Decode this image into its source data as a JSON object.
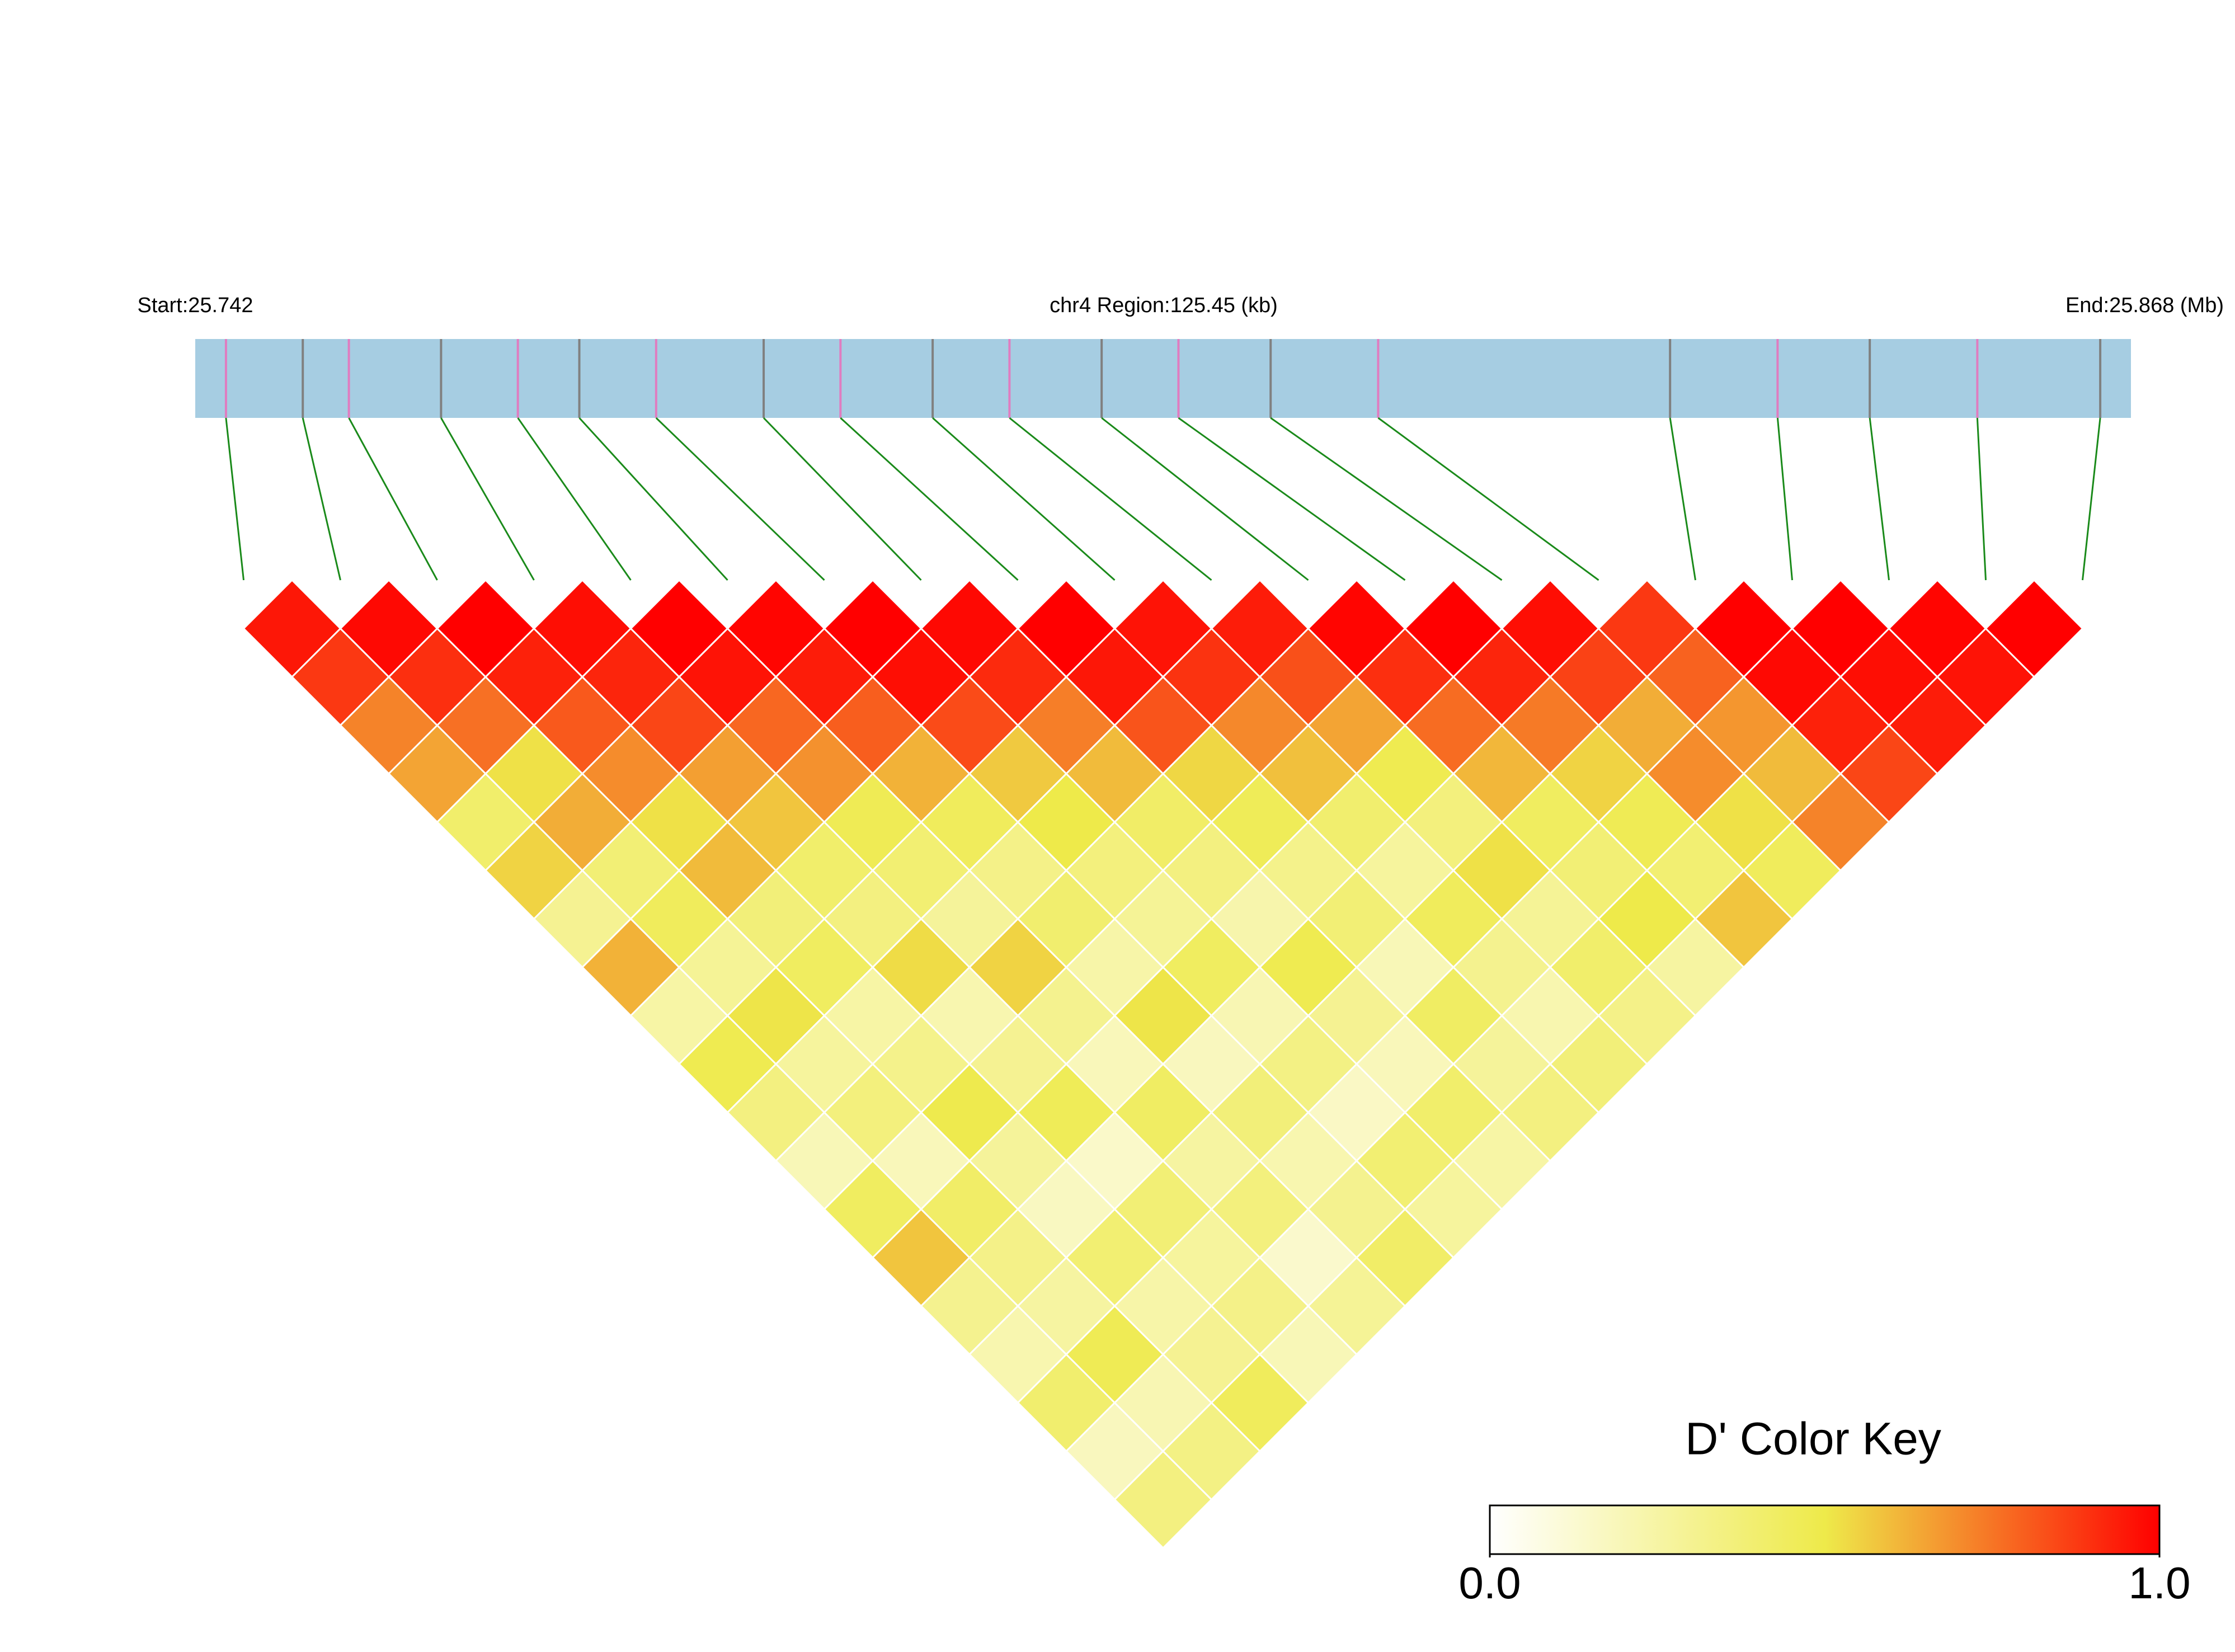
{
  "chart_data": {
    "type": "ld-heatmap",
    "start_label": "Start:25.742",
    "region_label": "chr4 Region:125.45 (kb)",
    "end_label": "End:25.868 (Mb)",
    "xlim": [
      25.742,
      25.868
    ],
    "snp_positions": [
      25.744,
      25.749,
      25.752,
      25.758,
      25.763,
      25.767,
      25.772,
      25.779,
      25.784,
      25.79,
      25.795,
      25.801,
      25.806,
      25.812,
      25.819,
      25.838,
      25.845,
      25.851,
      25.858,
      25.866
    ],
    "snp_colors": [
      "#e07cc0",
      "#808080"
    ],
    "bar_color": "#a6cde2",
    "link_color": "#1a8a1a",
    "dprime": [
      [
        0.95,
        0.88,
        0.72,
        0.65,
        0.41,
        0.55,
        0.3,
        0.62,
        0.25,
        0.48,
        0.35,
        0.2,
        0.44,
        0.58,
        0.31,
        0.22,
        0.4,
        0.18,
        0.35
      ],
      [
        0.98,
        0.9,
        0.76,
        0.52,
        0.63,
        0.38,
        0.45,
        0.29,
        0.51,
        0.27,
        0.36,
        0.19,
        0.42,
        0.33,
        0.26,
        0.47,
        0.21,
        0.34
      ],
      [
        1.0,
        0.93,
        0.81,
        0.7,
        0.52,
        0.6,
        0.37,
        0.44,
        0.25,
        0.32,
        0.49,
        0.28,
        0.17,
        0.39,
        0.24,
        0.3,
        0.45
      ],
      [
        0.97,
        0.92,
        0.85,
        0.66,
        0.58,
        0.41,
        0.35,
        0.53,
        0.22,
        0.3,
        0.46,
        0.15,
        0.38,
        0.27,
        0.33,
        0.2
      ],
      [
        1.0,
        0.96,
        0.78,
        0.69,
        0.47,
        0.39,
        0.28,
        0.55,
        0.31,
        0.19,
        0.43,
        0.26,
        0.36,
        0.14,
        0.29
      ],
      [
        0.99,
        0.94,
        0.8,
        0.62,
        0.45,
        0.33,
        0.4,
        0.24,
        0.51,
        0.18,
        0.37,
        0.22,
        0.31,
        0.42
      ],
      [
        1.0,
        0.97,
        0.84,
        0.57,
        0.5,
        0.36,
        0.29,
        0.44,
        0.21,
        0.34,
        0.16,
        0.39,
        0.27
      ],
      [
        0.98,
        0.91,
        0.73,
        0.6,
        0.42,
        0.35,
        0.23,
        0.48,
        0.3,
        0.19,
        0.41,
        0.25
      ],
      [
        1.0,
        0.95,
        0.82,
        0.54,
        0.46,
        0.32,
        0.38,
        0.2,
        0.43,
        0.28,
        0.35
      ],
      [
        0.96,
        0.89,
        0.71,
        0.59,
        0.4,
        0.27,
        0.45,
        0.31,
        0.22,
        0.37
      ],
      [
        0.94,
        0.83,
        0.65,
        0.48,
        0.36,
        0.52,
        0.29,
        0.41,
        0.33
      ],
      [
        0.99,
        0.9,
        0.77,
        0.61,
        0.44,
        0.38,
        0.5,
        0.26
      ],
      [
        1.0,
        0.92,
        0.74,
        0.55,
        0.47,
        0.39,
        0.58
      ],
      [
        0.97,
        0.86,
        0.63,
        0.7,
        0.52,
        0.45
      ],
      [
        0.88,
        0.79,
        0.68,
        0.6,
        0.72
      ],
      [
        1.0,
        0.98,
        0.93,
        0.85
      ],
      [
        1.0,
        0.97,
        0.94
      ],
      [
        0.99,
        0.96
      ],
      [
        1.0
      ]
    ],
    "color_key": {
      "title": "D' Color Key",
      "lim": [
        0,
        1
      ],
      "ticks": [
        {
          "value": 0,
          "label": "0.0"
        },
        {
          "value": 1,
          "label": "1.0"
        }
      ],
      "colors": [
        "#ffffff",
        "#eeea4a",
        "#ff0000"
      ]
    }
  }
}
